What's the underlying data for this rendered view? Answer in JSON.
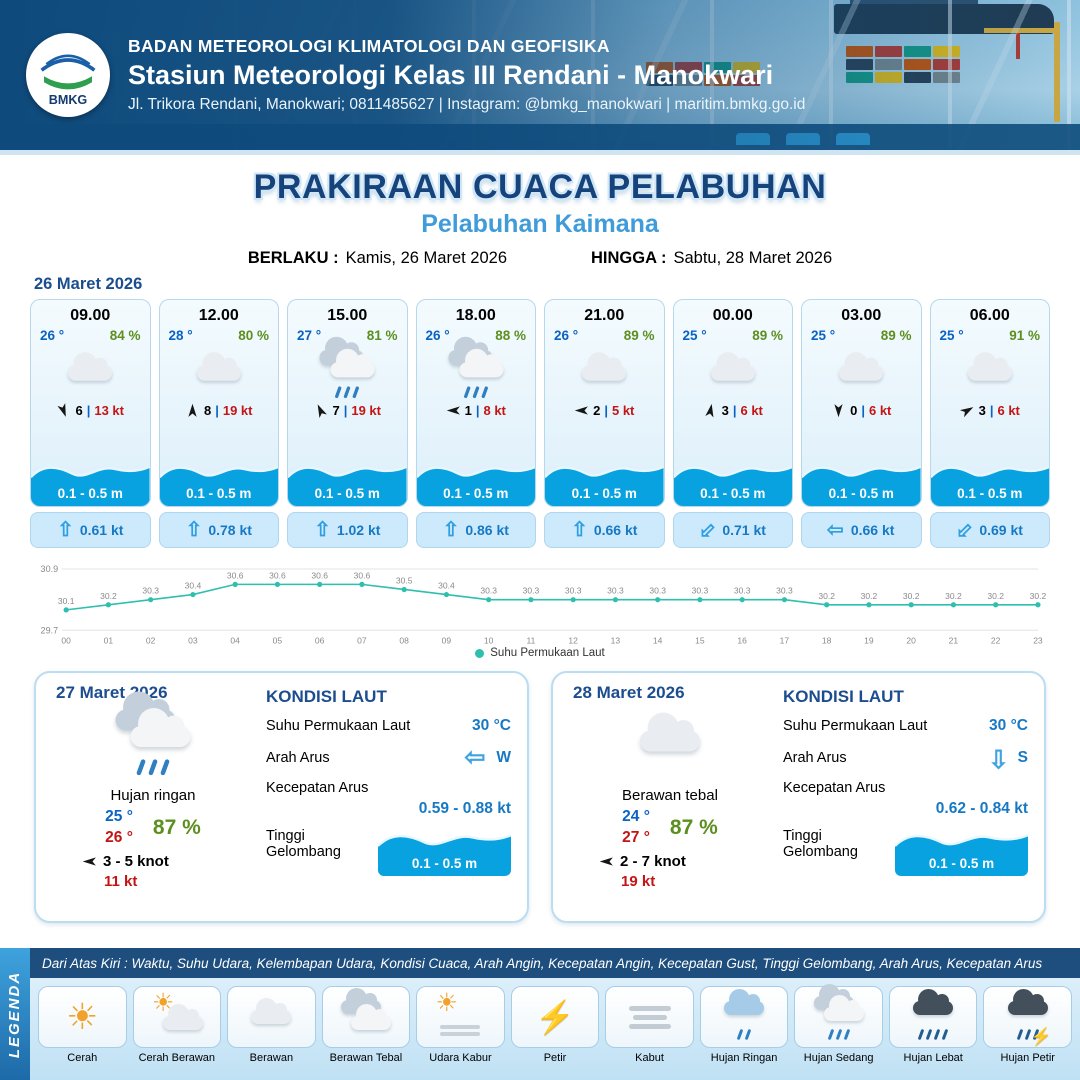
{
  "header": {
    "org_line": "BADAN METEOROLOGI KLIMATOLOGI DAN GEOFISIKA",
    "station_line": "Stasiun Meteorologi Kelas III Rendani - Manokwari",
    "contact_line": "Jl. Trikora Rendani, Manokwari; 0811485627 | Instagram: @bmkg_manokwari | maritim.bmkg.go.id",
    "logo_text": "BMKG"
  },
  "title": {
    "main": "PRAKIRAAN CUACA PELABUHAN",
    "subtitle": "Pelabuhan Kaimana",
    "valid_from_label": "BERLAKU :",
    "valid_from": "Kamis, 26 Maret 2026",
    "valid_to_label": "HINGGA :",
    "valid_to": "Sabtu, 28 Maret 2026"
  },
  "forecast": {
    "date": "26 Maret 2026",
    "cards": [
      {
        "time": "09.00",
        "temp": "26 °",
        "humidity": "84 %",
        "icon": "berawan",
        "wind_deg": 160,
        "wind_num": "6",
        "wind_speed": "13 kt",
        "wave": "0.1 - 0.5 m",
        "current_deg": 0,
        "current_speed": "0.61 kt"
      },
      {
        "time": "12.00",
        "temp": "28 °",
        "humidity": "80 %",
        "icon": "berawan",
        "wind_deg": 0,
        "wind_num": "8",
        "wind_speed": "19 kt",
        "wave": "0.1 - 0.5 m",
        "current_deg": 0,
        "current_speed": "0.78 kt"
      },
      {
        "time": "15.00",
        "temp": "27 °",
        "humidity": "81 %",
        "icon": "hujan-sedang",
        "wind_deg": -25,
        "wind_num": "7",
        "wind_speed": "19 kt",
        "wave": "0.1 - 0.5 m",
        "current_deg": 0,
        "current_speed": "1.02 kt"
      },
      {
        "time": "18.00",
        "temp": "26 °",
        "humidity": "88 %",
        "icon": "hujan-sedang",
        "wind_deg": -90,
        "wind_num": "1",
        "wind_speed": "8 kt",
        "wave": "0.1 - 0.5 m",
        "current_deg": 0,
        "current_speed": "0.86 kt"
      },
      {
        "time": "21.00",
        "temp": "26 °",
        "humidity": "89 %",
        "icon": "berawan",
        "wind_deg": -90,
        "wind_num": "2",
        "wind_speed": "5 kt",
        "wave": "0.1 - 0.5 m",
        "current_deg": 0,
        "current_speed": "0.66 kt"
      },
      {
        "time": "00.00",
        "temp": "25 °",
        "humidity": "89 %",
        "icon": "berawan",
        "wind_deg": 10,
        "wind_num": "3",
        "wind_speed": "6 kt",
        "wave": "0.1 - 0.5 m",
        "current_deg": 225,
        "current_speed": "0.71 kt"
      },
      {
        "time": "03.00",
        "temp": "25 °",
        "humidity": "89 %",
        "icon": "berawan",
        "wind_deg": 180,
        "wind_num": "0",
        "wind_speed": "6 kt",
        "wave": "0.1 - 0.5 m",
        "current_deg": 270,
        "current_speed": "0.66 kt"
      },
      {
        "time": "06.00",
        "temp": "25 °",
        "humidity": "91 %",
        "icon": "berawan",
        "wind_deg": 60,
        "wind_num": "3",
        "wind_speed": "6 kt",
        "wave": "0.1 - 0.5 m",
        "current_deg": 225,
        "current_speed": "0.69 kt"
      }
    ]
  },
  "chart_data": {
    "type": "line",
    "title": "Suhu Permukaan Laut",
    "x": [
      "00",
      "01",
      "02",
      "03",
      "04",
      "05",
      "06",
      "07",
      "08",
      "09",
      "10",
      "11",
      "12",
      "13",
      "14",
      "15",
      "16",
      "17",
      "18",
      "19",
      "20",
      "21",
      "22",
      "23"
    ],
    "values": [
      30.1,
      30.2,
      30.3,
      30.4,
      30.6,
      30.6,
      30.6,
      30.6,
      30.5,
      30.4,
      30.3,
      30.3,
      30.3,
      30.3,
      30.3,
      30.3,
      30.3,
      30.3,
      30.2,
      30.2,
      30.2,
      30.2,
      30.2,
      30.2
    ],
    "ylim": [
      29.7,
      30.9
    ],
    "y_ticks": [
      "30.9",
      "29.7"
    ],
    "legend": "Suhu Permukaan Laut",
    "legend_position": "bottom",
    "grid": false,
    "line_color": "#2fbfae"
  },
  "day_cards": [
    {
      "date": "27 Maret 2026",
      "icon": "hujan",
      "condition": "Hujan ringan",
      "temp_min": "25 °",
      "humidity": "87 %",
      "temp_max": "26 °",
      "wind_deg": 270,
      "wind_range": "3  - 5 knot",
      "gust": "11 kt",
      "sea_title": "KONDISI LAUT",
      "sst_label": "Suhu Permukaan Laut",
      "sst": "30 °C",
      "current_dir_label": "Arah Arus",
      "current_dir": "W",
      "current_deg": 270,
      "current_speed_label": "Kecepatan Arus",
      "current_speed": "0.59  - 0.88 kt",
      "wave_label": "Tinggi Gelombang",
      "wave": "0.1 - 0.5 m"
    },
    {
      "date": "28 Maret 2026",
      "icon": "berawan",
      "condition": "Berawan tebal",
      "temp_min": "24 °",
      "humidity": "87 %",
      "temp_max": "27 °",
      "wind_deg": 270,
      "wind_range": "2  - 7 knot",
      "gust": "19 kt",
      "sea_title": "KONDISI LAUT",
      "sst_label": "Suhu Permukaan Laut",
      "sst": "30 °C",
      "current_dir_label": "Arah Arus",
      "current_dir": "S",
      "current_deg": 180,
      "current_speed_label": "Kecepatan Arus",
      "current_speed": "0.62  - 0.84 kt",
      "wave_label": "Tinggi Gelombang",
      "wave": "0.1 - 0.5 m"
    }
  ],
  "legend": {
    "sidebar": "LEGENDA",
    "description": "Dari Atas Kiri : Waktu, Suhu Udara, Kelembapan Udara, Kondisi Cuaca, Arah Angin, Kecepatan Angin, Kecepatan Gust, Tinggi Gelombang, Arah Arus, Kecepatan Arus",
    "items": [
      {
        "label": "Cerah",
        "icon": "cerah"
      },
      {
        "label": "Cerah Berawan",
        "icon": "cerah-berawan"
      },
      {
        "label": "Berawan",
        "icon": "berawan"
      },
      {
        "label": "Berawan Tebal",
        "icon": "berawan-tebal"
      },
      {
        "label": "Udara Kabur",
        "icon": "udara-kabur"
      },
      {
        "label": "Petir",
        "icon": "petir"
      },
      {
        "label": "Kabut",
        "icon": "kabut"
      },
      {
        "label": "Hujan Ringan",
        "icon": "hujan-ringan"
      },
      {
        "label": "Hujan Sedang",
        "icon": "hujan-sedang"
      },
      {
        "label": "Hujan Lebat",
        "icon": "hujan-lebat"
      },
      {
        "label": "Hujan Petir",
        "icon": "hujan-petir"
      }
    ]
  },
  "colors": {
    "accent_blue": "#0a62c4",
    "humidity_green": "#5c8f1e",
    "speed_red": "#c41414",
    "wave_blue": "#07a2df",
    "header_navy": "#0e4a7c",
    "title_navy": "#16437c",
    "subtitle_blue": "#3f9bd9",
    "chart_teal": "#2fbfae"
  }
}
